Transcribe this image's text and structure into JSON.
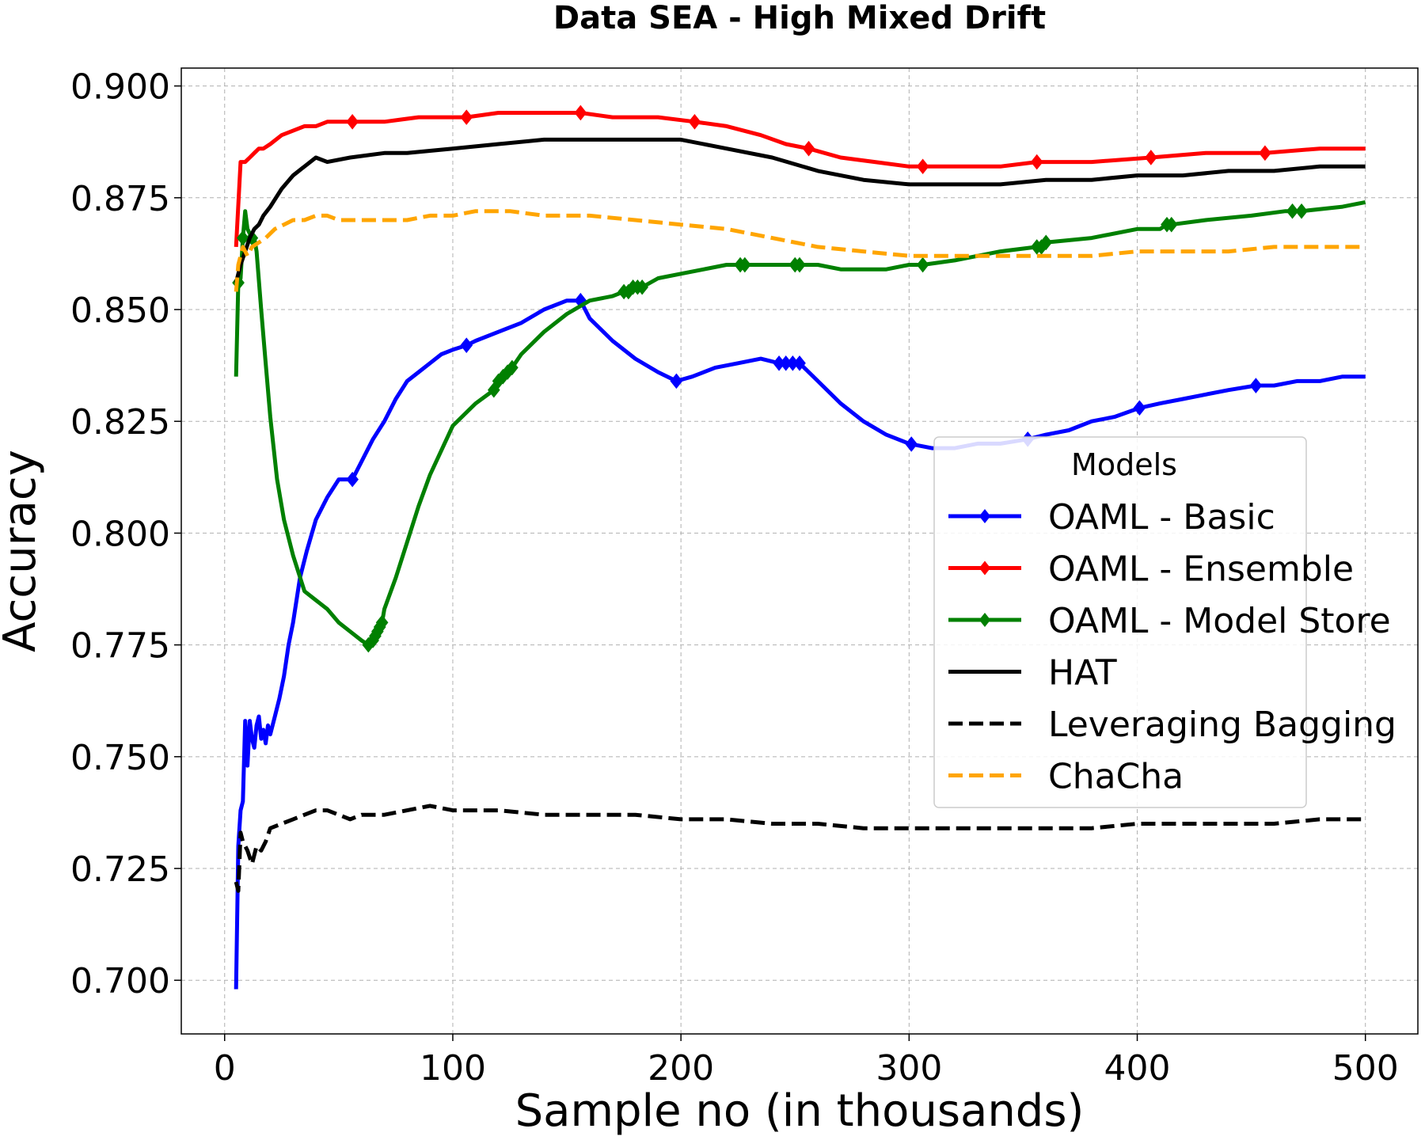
{
  "chart_data": {
    "type": "line",
    "title": "Data SEA - High Mixed Drift",
    "xlabel": "Sample no (in thousands)",
    "ylabel": "Accuracy",
    "xlim": [
      -19,
      523
    ],
    "ylim": [
      0.688,
      0.904
    ],
    "xticks": [
      0,
      100,
      200,
      300,
      400,
      500
    ],
    "xtick_labels": [
      "0",
      "100",
      "200",
      "300",
      "400",
      "500"
    ],
    "yticks": [
      0.7,
      0.725,
      0.75,
      0.775,
      0.8,
      0.825,
      0.85,
      0.875,
      0.9
    ],
    "ytick_labels": [
      "0.700",
      "0.725",
      "0.750",
      "0.775",
      "0.800",
      "0.825",
      "0.850",
      "0.875",
      "0.900"
    ],
    "grid": true,
    "legend": {
      "title": "Models",
      "position": "center-right"
    },
    "series": [
      {
        "name": "OAML - Basic",
        "color": "#0000ff",
        "dash": "solid",
        "marker": "diamond",
        "x": [
          5,
          6,
          7,
          8,
          9,
          10,
          11,
          12,
          13,
          14,
          15,
          16,
          17,
          18,
          19,
          20,
          22,
          24,
          26,
          28,
          30,
          33,
          36,
          40,
          45,
          50,
          56,
          60,
          65,
          70,
          75,
          80,
          85,
          90,
          95,
          100,
          106,
          110,
          120,
          130,
          140,
          150,
          156,
          160,
          170,
          180,
          190,
          198,
          205,
          215,
          225,
          235,
          243,
          246,
          249,
          252,
          260,
          270,
          280,
          290,
          300,
          310,
          320,
          330,
          340,
          352,
          360,
          370,
          380,
          390,
          401,
          410,
          420,
          430,
          440,
          452,
          460,
          470,
          480,
          490,
          500
        ],
        "y": [
          0.698,
          0.73,
          0.738,
          0.74,
          0.758,
          0.748,
          0.758,
          0.754,
          0.752,
          0.757,
          0.759,
          0.754,
          0.756,
          0.753,
          0.757,
          0.755,
          0.759,
          0.763,
          0.768,
          0.775,
          0.78,
          0.79,
          0.796,
          0.803,
          0.808,
          0.812,
          0.812,
          0.816,
          0.821,
          0.825,
          0.83,
          0.834,
          0.836,
          0.838,
          0.84,
          0.841,
          0.842,
          0.843,
          0.845,
          0.847,
          0.85,
          0.852,
          0.852,
          0.848,
          0.843,
          0.839,
          0.836,
          0.834,
          0.835,
          0.837,
          0.838,
          0.839,
          0.838,
          0.838,
          0.838,
          0.838,
          0.834,
          0.829,
          0.825,
          0.822,
          0.82,
          0.819,
          0.819,
          0.82,
          0.82,
          0.821,
          0.822,
          0.823,
          0.825,
          0.826,
          0.828,
          0.829,
          0.83,
          0.831,
          0.832,
          0.833,
          0.833,
          0.834,
          0.834,
          0.835,
          0.835
        ],
        "marker_x": [
          56,
          106,
          156,
          198,
          243,
          246,
          249,
          252,
          301,
          352,
          401,
          452
        ]
      },
      {
        "name": "OAML - Ensemble",
        "color": "#ff0000",
        "dash": "solid",
        "marker": "diamond",
        "x": [
          5,
          7,
          9,
          11,
          13,
          15,
          17,
          20,
          25,
          30,
          35,
          40,
          45,
          56,
          70,
          85,
          95,
          106,
          120,
          140,
          156,
          170,
          190,
          206,
          220,
          235,
          246,
          256,
          270,
          285,
          300,
          306,
          320,
          340,
          356,
          380,
          406,
          430,
          456,
          480,
          500
        ],
        "y": [
          0.864,
          0.883,
          0.883,
          0.884,
          0.885,
          0.886,
          0.886,
          0.887,
          0.889,
          0.89,
          0.891,
          0.891,
          0.892,
          0.892,
          0.892,
          0.893,
          0.893,
          0.893,
          0.894,
          0.894,
          0.894,
          0.893,
          0.893,
          0.892,
          0.891,
          0.889,
          0.887,
          0.886,
          0.884,
          0.883,
          0.882,
          0.882,
          0.882,
          0.882,
          0.883,
          0.883,
          0.884,
          0.885,
          0.885,
          0.886,
          0.886
        ]
      },
      {
        "name": "OAML - Model Store",
        "color": "#008000",
        "dash": "solid",
        "marker": "diamond",
        "x": [
          5,
          6,
          7,
          8,
          9,
          10,
          11,
          12,
          13,
          14,
          16,
          18,
          20,
          23,
          26,
          30,
          35,
          40,
          45,
          50,
          55,
          60,
          63,
          65,
          66,
          67,
          68,
          69,
          70,
          75,
          80,
          85,
          90,
          100,
          110,
          118,
          120,
          122,
          124,
          126,
          130,
          140,
          150,
          160,
          170,
          175,
          177,
          179,
          181,
          183,
          190,
          200,
          210,
          220,
          226,
          228,
          235,
          245,
          250,
          252,
          260,
          270,
          280,
          290,
          300,
          306,
          320,
          340,
          356,
          358,
          360,
          380,
          400,
          410,
          413,
          415,
          430,
          450,
          465,
          468,
          472,
          490,
          500
        ],
        "y": [
          0.835,
          0.856,
          0.857,
          0.866,
          0.872,
          0.868,
          0.867,
          0.866,
          0.866,
          0.863,
          0.85,
          0.838,
          0.826,
          0.812,
          0.803,
          0.795,
          0.787,
          0.785,
          0.783,
          0.78,
          0.778,
          0.776,
          0.775,
          0.776,
          0.777,
          0.778,
          0.779,
          0.78,
          0.783,
          0.79,
          0.798,
          0.806,
          0.813,
          0.824,
          0.829,
          0.832,
          0.834,
          0.835,
          0.836,
          0.837,
          0.84,
          0.845,
          0.849,
          0.852,
          0.853,
          0.854,
          0.854,
          0.855,
          0.855,
          0.855,
          0.857,
          0.858,
          0.859,
          0.86,
          0.86,
          0.86,
          0.86,
          0.86,
          0.86,
          0.86,
          0.86,
          0.859,
          0.859,
          0.859,
          0.86,
          0.86,
          0.861,
          0.863,
          0.864,
          0.864,
          0.865,
          0.866,
          0.868,
          0.868,
          0.869,
          0.869,
          0.87,
          0.871,
          0.872,
          0.872,
          0.872,
          0.873,
          0.874
        ],
        "marker_x": [
          6,
          8,
          12,
          63,
          65,
          66,
          67,
          68,
          69,
          118,
          120,
          122,
          124,
          126,
          175,
          177,
          179,
          181,
          183,
          226,
          228,
          250,
          252,
          306,
          356,
          358,
          360,
          413,
          415,
          468,
          472
        ]
      },
      {
        "name": "HAT",
        "color": "#000000",
        "dash": "solid",
        "marker": "none",
        "x": [
          5,
          7,
          9,
          11,
          13,
          15,
          17,
          20,
          25,
          30,
          35,
          40,
          45,
          55,
          70,
          80,
          100,
          120,
          140,
          160,
          180,
          200,
          220,
          240,
          260,
          280,
          300,
          320,
          340,
          360,
          380,
          400,
          420,
          440,
          460,
          480,
          500
        ],
        "y": [
          0.856,
          0.86,
          0.863,
          0.866,
          0.868,
          0.869,
          0.871,
          0.873,
          0.877,
          0.88,
          0.882,
          0.884,
          0.883,
          0.884,
          0.885,
          0.885,
          0.886,
          0.887,
          0.888,
          0.888,
          0.888,
          0.888,
          0.886,
          0.884,
          0.881,
          0.879,
          0.878,
          0.878,
          0.878,
          0.879,
          0.879,
          0.88,
          0.88,
          0.881,
          0.881,
          0.882,
          0.882
        ]
      },
      {
        "name": "Leveraging Bagging",
        "color": "#000000",
        "dash": "dashed",
        "marker": "none",
        "x": [
          5,
          6,
          7,
          8,
          10,
          12,
          14,
          16,
          18,
          20,
          25,
          30,
          35,
          40,
          45,
          50,
          55,
          60,
          70,
          80,
          90,
          100,
          120,
          140,
          160,
          180,
          200,
          220,
          240,
          260,
          280,
          300,
          320,
          340,
          360,
          380,
          400,
          420,
          440,
          460,
          480,
          500
        ],
        "y": [
          0.722,
          0.72,
          0.733,
          0.731,
          0.729,
          0.726,
          0.73,
          0.729,
          0.731,
          0.734,
          0.735,
          0.736,
          0.737,
          0.738,
          0.738,
          0.737,
          0.736,
          0.737,
          0.737,
          0.738,
          0.739,
          0.738,
          0.738,
          0.737,
          0.737,
          0.737,
          0.736,
          0.736,
          0.735,
          0.735,
          0.734,
          0.734,
          0.734,
          0.734,
          0.734,
          0.734,
          0.735,
          0.735,
          0.735,
          0.735,
          0.736,
          0.736
        ]
      },
      {
        "name": "ChaCha",
        "color": "#ffa500",
        "dash": "dashed",
        "marker": "none",
        "x": [
          5,
          6,
          8,
          10,
          12,
          15,
          18,
          22,
          26,
          30,
          35,
          40,
          45,
          50,
          60,
          70,
          80,
          90,
          100,
          110,
          125,
          140,
          160,
          180,
          200,
          220,
          240,
          260,
          280,
          300,
          320,
          340,
          360,
          380,
          400,
          420,
          440,
          460,
          480,
          500
        ],
        "y": [
          0.854,
          0.86,
          0.864,
          0.862,
          0.864,
          0.865,
          0.866,
          0.868,
          0.869,
          0.87,
          0.87,
          0.871,
          0.871,
          0.87,
          0.87,
          0.87,
          0.87,
          0.871,
          0.871,
          0.872,
          0.872,
          0.871,
          0.871,
          0.87,
          0.869,
          0.868,
          0.866,
          0.864,
          0.863,
          0.862,
          0.862,
          0.862,
          0.862,
          0.862,
          0.863,
          0.863,
          0.863,
          0.864,
          0.864,
          0.864
        ]
      }
    ]
  }
}
